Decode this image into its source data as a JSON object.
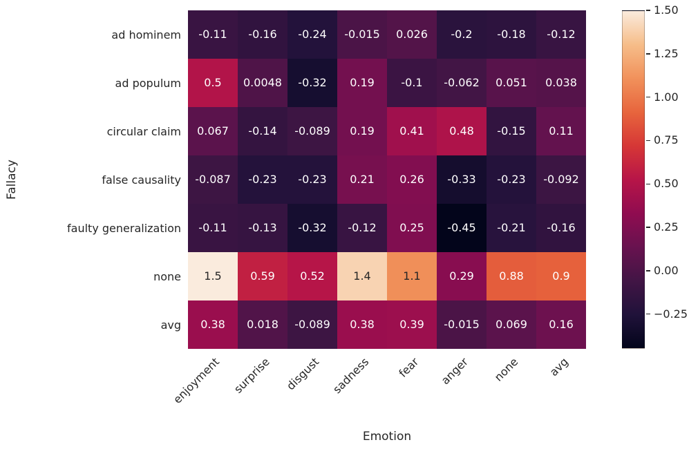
{
  "chart_data": {
    "type": "heatmap",
    "xlabel": "Emotion",
    "ylabel": "Fallacy",
    "x_categories": [
      "enjoyment",
      "surprise",
      "disgust",
      "sadness",
      "fear",
      "anger",
      "none",
      "avg"
    ],
    "y_categories": [
      "ad hominem",
      "ad populum",
      "circular claim",
      "false causality",
      "faulty generalization",
      "none",
      "avg"
    ],
    "values": [
      [
        -0.11,
        -0.16,
        -0.24,
        -0.015,
        0.026,
        -0.2,
        -0.18,
        -0.12
      ],
      [
        0.5,
        0.0048,
        -0.32,
        0.19,
        -0.1,
        -0.062,
        0.051,
        0.038
      ],
      [
        0.067,
        -0.14,
        -0.089,
        0.19,
        0.41,
        0.48,
        -0.15,
        0.11
      ],
      [
        -0.087,
        -0.23,
        -0.23,
        0.21,
        0.26,
        -0.33,
        -0.23,
        -0.092
      ],
      [
        -0.11,
        -0.13,
        -0.32,
        -0.12,
        0.25,
        -0.45,
        -0.21,
        -0.16
      ],
      [
        1.5,
        0.59,
        0.52,
        1.4,
        1.1,
        0.29,
        0.88,
        0.9
      ],
      [
        0.38,
        0.018,
        -0.089,
        0.38,
        0.39,
        -0.015,
        0.069,
        0.16
      ]
    ],
    "cell_labels": [
      [
        "-0.11",
        "-0.16",
        "-0.24",
        "-0.015",
        "0.026",
        "-0.2",
        "-0.18",
        "-0.12"
      ],
      [
        "0.5",
        "0.0048",
        "-0.32",
        "0.19",
        "-0.1",
        "-0.062",
        "0.051",
        "0.038"
      ],
      [
        "0.067",
        "-0.14",
        "-0.089",
        "0.19",
        "0.41",
        "0.48",
        "-0.15",
        "0.11"
      ],
      [
        "-0.087",
        "-0.23",
        "-0.23",
        "0.21",
        "0.26",
        "-0.33",
        "-0.23",
        "-0.092"
      ],
      [
        "-0.11",
        "-0.13",
        "-0.32",
        "-0.12",
        "0.25",
        "-0.45",
        "-0.21",
        "-0.16"
      ],
      [
        "1.5",
        "0.59",
        "0.52",
        "1.4",
        "1.1",
        "0.29",
        "0.88",
        "0.9"
      ],
      [
        "0.38",
        "0.018",
        "-0.089",
        "0.38",
        "0.39",
        "-0.015",
        "0.069",
        "0.16"
      ]
    ],
    "vmin": -0.45,
    "vmax": 1.5,
    "grid": false,
    "colormap": "rocket",
    "colormap_stops": [
      "#03051B",
      "#20123A",
      "#421545",
      "#68124F",
      "#900C50",
      "#B71548",
      "#D63736",
      "#E7653D",
      "#F1915B",
      "#F6BD89",
      "#FAEBDD"
    ],
    "colorbar": {
      "position": "right",
      "ticks": [
        "1.50",
        "1.25",
        "1.00",
        "0.75",
        "0.50",
        "0.25",
        "0.00",
        "−0.25"
      ],
      "tick_values": [
        1.5,
        1.25,
        1.0,
        0.75,
        0.5,
        0.25,
        0.0,
        -0.25
      ]
    },
    "text_colors": {
      "dark": "#262626",
      "light": "#ffffff"
    }
  }
}
